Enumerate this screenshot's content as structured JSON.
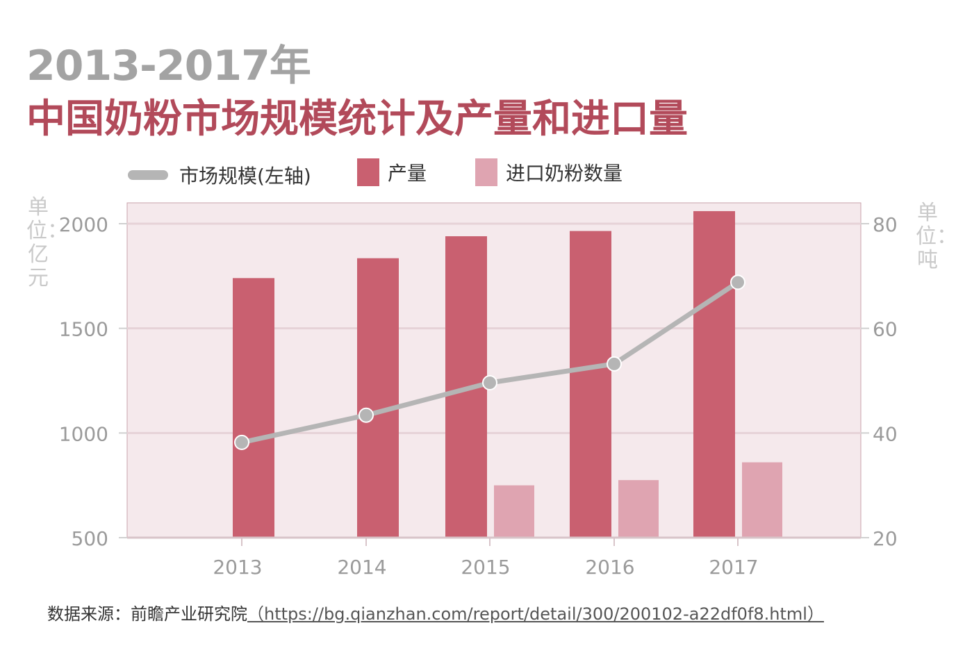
{
  "title": {
    "line1": "2013-2017年",
    "line2": "中国奶粉市场规模统计及产量和进口量"
  },
  "legend": {
    "line": "市场规模(左轴)",
    "bar1": "产量",
    "bar2": "进口奶粉数量"
  },
  "units": {
    "left": "单位：亿元",
    "right": "单位：吨"
  },
  "source": {
    "prefix": "数据来源：前瞻产业研究院",
    "link": "（https://bg.qianzhan.com/report/detail/300/200102-a22df0f8.html）"
  },
  "colors": {
    "plot_bg": "#f5e9ec",
    "bar_production": "#c96070",
    "bar_import": "#dfa4b1",
    "line": "#b5b5b5",
    "grid": "#e6d2d7"
  },
  "chart_data": {
    "type": "bar",
    "categories": [
      "2013",
      "2014",
      "2015",
      "2016",
      "2017"
    ],
    "y_left": {
      "ticks": [
        500,
        1000,
        1500,
        2000
      ]
    },
    "y_right": {
      "ticks": [
        20,
        40,
        60,
        80
      ]
    },
    "series": [
      {
        "name": "产量",
        "type": "bar",
        "axis": "left",
        "values": [
          1740,
          1835,
          1940,
          1965,
          2060
        ]
      },
      {
        "name": "进口奶粉数量",
        "type": "bar",
        "axis": "left",
        "values": [
          null,
          null,
          750,
          775,
          860
        ]
      },
      {
        "name": "市场规模(左轴)",
        "type": "line",
        "axis": "left",
        "values": [
          955,
          1085,
          1240,
          1330,
          1720
        ]
      }
    ],
    "grid": true,
    "legend_position": "top"
  }
}
